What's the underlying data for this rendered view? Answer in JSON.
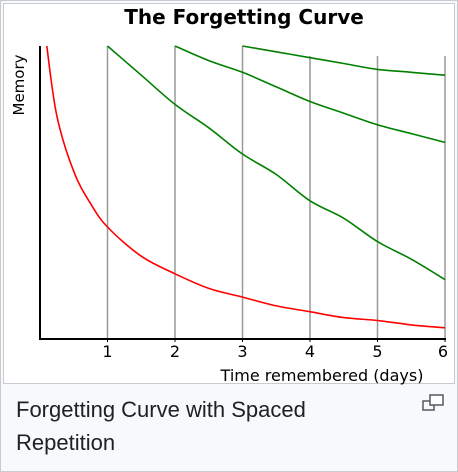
{
  "chart_data": {
    "type": "line",
    "title": "The Forgetting Curve",
    "xlabel": "Time remembered (days)",
    "ylabel": "Memory",
    "xlim": [
      0,
      6
    ],
    "ylim": [
      0,
      1
    ],
    "x_ticks": [
      "1",
      "2",
      "3",
      "4",
      "5",
      "6"
    ],
    "grid": "vertical lines at review days",
    "review_days": [
      1,
      2,
      3
    ],
    "series": [
      {
        "color": "#ff0000",
        "points": [
          [
            0.1,
            1.0
          ],
          [
            0.25,
            0.76
          ],
          [
            0.5,
            0.57
          ],
          [
            0.75,
            0.46
          ],
          [
            1,
            0.38
          ],
          [
            1.5,
            0.28
          ],
          [
            2,
            0.22
          ],
          [
            2.5,
            0.17
          ],
          [
            3,
            0.14
          ],
          [
            3.5,
            0.11
          ],
          [
            4,
            0.09
          ],
          [
            4.5,
            0.07
          ],
          [
            5,
            0.06
          ],
          [
            5.5,
            0.045
          ],
          [
            6,
            0.035
          ]
        ]
      },
      {
        "color": "#008000",
        "points": [
          [
            1,
            1.0
          ],
          [
            1.5,
            0.9
          ],
          [
            2,
            0.8
          ],
          [
            2.5,
            0.72
          ],
          [
            3,
            0.63
          ],
          [
            3.5,
            0.56
          ],
          [
            4,
            0.47
          ],
          [
            4.5,
            0.41
          ],
          [
            5,
            0.33
          ],
          [
            5.5,
            0.27
          ],
          [
            6,
            0.2
          ]
        ]
      },
      {
        "color": "#008000",
        "points": [
          [
            2,
            1.0
          ],
          [
            2.5,
            0.95
          ],
          [
            3,
            0.91
          ],
          [
            3.5,
            0.86
          ],
          [
            4,
            0.81
          ],
          [
            4.5,
            0.77
          ],
          [
            5,
            0.73
          ],
          [
            5.5,
            0.7
          ],
          [
            6,
            0.67
          ]
        ]
      },
      {
        "color": "#008000",
        "points": [
          [
            3,
            1.0
          ],
          [
            3.5,
            0.98
          ],
          [
            4,
            0.96
          ],
          [
            4.5,
            0.94
          ],
          [
            5,
            0.92
          ],
          [
            5.5,
            0.91
          ],
          [
            6,
            0.9
          ]
        ]
      }
    ]
  },
  "caption": "Forgetting Curve with Spaced Repetition",
  "colors": {
    "axis": "#000000",
    "grid": "#999999",
    "border": "#c8ccd1",
    "caption_text": "#202122"
  },
  "enlarge_icon": "magnify-clip-icon"
}
